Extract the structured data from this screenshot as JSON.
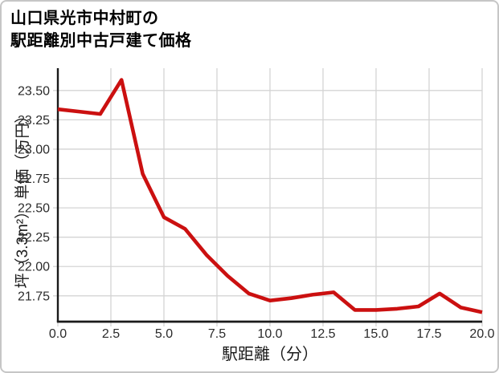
{
  "title": {
    "line1": "山口県光市中村町の",
    "line2": "駅距離別中古戸建て価格"
  },
  "chart_data": {
    "type": "line",
    "title": "山口県光市中村町の駅距離別中古戸建て価格",
    "xlabel": "駅距離（分）",
    "ylabel": "坪（3.3m²） 単価（万円）",
    "x": [
      0,
      1,
      2,
      3,
      4,
      5,
      6,
      7,
      8,
      9,
      10,
      11,
      12,
      13,
      14,
      15,
      16,
      17,
      18,
      19,
      20
    ],
    "values": [
      23.34,
      23.32,
      23.3,
      23.59,
      22.79,
      22.42,
      22.32,
      22.1,
      21.92,
      21.77,
      21.71,
      21.73,
      21.76,
      21.78,
      21.63,
      21.63,
      21.64,
      21.66,
      21.77,
      21.65,
      21.61
    ],
    "xlim": [
      0,
      20
    ],
    "ylim": [
      21.53,
      23.69
    ],
    "xticks": [
      "0.0",
      "2.5",
      "5.0",
      "7.5",
      "10.0",
      "12.5",
      "15.0",
      "17.5",
      "20.0"
    ],
    "yticks": [
      "21.75",
      "22.00",
      "22.25",
      "22.50",
      "22.75",
      "23.00",
      "23.25",
      "23.50"
    ],
    "grid": true,
    "legend": false,
    "colors": {
      "line": "#cb1010",
      "grid": "#d4d4d4",
      "spine": "#1a1a1a",
      "tick_text": "#2b2b2b",
      "frame_border": "#c6c6c6"
    }
  }
}
